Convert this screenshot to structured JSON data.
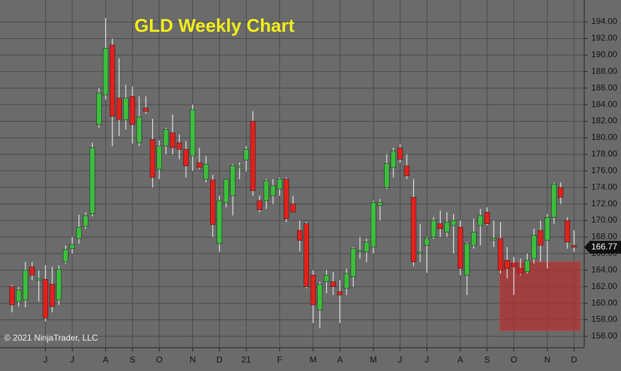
{
  "chart_data": {
    "type": "candlestick",
    "title": "GLD Weekly Chart",
    "copyright": "© 2021 NinjaTrader, LLC",
    "categories": [
      null,
      null,
      null,
      null,
      null,
      "J",
      null,
      null,
      null,
      "J",
      null,
      null,
      null,
      null,
      "A",
      null,
      null,
      null,
      "S",
      null,
      null,
      null,
      "O",
      null,
      null,
      null,
      null,
      "N",
      null,
      null,
      null,
      "D",
      null,
      null,
      null,
      "21",
      null,
      null,
      null,
      null,
      "F",
      null,
      null,
      null,
      null,
      "M",
      null,
      null,
      null,
      "A",
      null,
      null,
      null,
      null,
      "M",
      null,
      null,
      null,
      "J",
      null,
      null,
      null,
      "J",
      null,
      null,
      null,
      null,
      "A",
      null,
      null,
      null,
      "S",
      null,
      null,
      null,
      "O",
      null,
      null,
      null,
      null,
      "N",
      null,
      null,
      null,
      "D"
    ],
    "open": [
      162.0,
      160.2,
      160.4,
      164.4,
      162.8,
      162.9,
      162.3,
      160.4,
      165.0,
      166.6,
      167.8,
      169.3,
      170.8,
      181.6,
      185.2,
      191.2,
      184.8,
      182.2,
      185.0,
      179.4,
      183.6,
      179.8,
      176.2,
      179.0,
      180.6,
      179.4,
      178.6,
      177.8,
      177.0,
      175.0,
      174.9,
      167.2,
      172.2,
      173.0,
      176.4,
      177.3,
      182.0,
      172.4,
      172.4,
      173.0,
      173.8,
      175.0,
      172.0,
      168.8,
      169.6,
      163.4,
      159.2,
      162.6,
      162.6,
      161.4,
      161.8,
      163.2,
      166.2,
      166.2,
      166.8,
      171.8,
      174.0,
      176.4,
      178.8,
      176.6,
      172.8,
      166.0,
      167.0,
      168.0,
      169.6,
      168.6,
      169.4,
      169.2,
      163.4,
      167.0,
      169.4,
      171.0,
      167.6,
      167.8,
      165.2,
      164.8,
      164.2,
      163.8,
      165.4,
      168.8,
      167.6,
      170.4,
      174.0,
      170.0,
      167.0
    ],
    "high": [
      162.2,
      162.0,
      165.0,
      165.0,
      164.0,
      164.6,
      164.4,
      164.6,
      167.0,
      168.0,
      170.7,
      171.0,
      179.4,
      186.0,
      194.5,
      192.0,
      189.6,
      186.4,
      186.2,
      185.0,
      185.0,
      182.3,
      179.7,
      181.2,
      182.8,
      180.4,
      179.6,
      184.0,
      178.8,
      177.8,
      175.5,
      173.0,
      175.0,
      176.8,
      177.0,
      179.0,
      183.2,
      173.0,
      175.0,
      175.0,
      175.2,
      175.2,
      173.0,
      170.0,
      169.8,
      164.0,
      162.6,
      164.0,
      163.8,
      162.8,
      164.2,
      166.8,
      168.0,
      167.8,
      172.4,
      172.6,
      178.0,
      178.8,
      179.2,
      178.0,
      175.0,
      169.6,
      168.0,
      170.4,
      171.2,
      171.0,
      170.8,
      170.0,
      167.4,
      170.2,
      171.4,
      171.6,
      170.0,
      169.8,
      166.8,
      165.6,
      165.4,
      166.0,
      169.0,
      170.0,
      170.8,
      174.6,
      174.6,
      170.4,
      168.8
    ],
    "low": [
      158.9,
      159.6,
      159.5,
      162.8,
      160.2,
      157.8,
      158.9,
      159.8,
      164.8,
      166.0,
      167.2,
      169.0,
      170.5,
      181.2,
      184.6,
      179.0,
      180.2,
      181.0,
      179.3,
      179.0,
      182.9,
      174.0,
      175.0,
      178.0,
      178.0,
      177.4,
      175.2,
      176.0,
      176.2,
      174.6,
      168.0,
      166.2,
      171.6,
      170.6,
      175.0,
      175.9,
      173.0,
      171.0,
      171.4,
      172.0,
      173.0,
      169.8,
      171.0,
      166.3,
      161.8,
      157.6,
      157.0,
      161.2,
      161.0,
      157.6,
      161.0,
      162.0,
      165.4,
      165.0,
      166.0,
      170.0,
      173.8,
      175.2,
      177.0,
      175.0,
      164.5,
      165.0,
      163.7,
      167.8,
      168.0,
      168.0,
      166.0,
      163.4,
      161.0,
      166.6,
      167.0,
      169.4,
      166.8,
      163.6,
      163.0,
      161.0,
      163.4,
      163.6,
      164.8,
      165.0,
      164.2,
      169.6,
      172.0,
      166.6,
      166.2
    ],
    "close": [
      159.8,
      161.6,
      164.0,
      163.4,
      163.0,
      158.2,
      159.6,
      164.1,
      166.5,
      167.1,
      169.2,
      170.6,
      178.8,
      185.4,
      190.8,
      182.6,
      182.2,
      184.8,
      181.6,
      182.5,
      183.2,
      175.2,
      179.0,
      181.0,
      178.8,
      178.6,
      176.6,
      183.4,
      176.4,
      176.8,
      169.5,
      172.4,
      175.0,
      176.6,
      176.6,
      178.6,
      173.6,
      171.3,
      174.8,
      174.2,
      175.0,
      170.2,
      171.0,
      167.6,
      162.0,
      159.8,
      162.3,
      163.4,
      162.0,
      161.0,
      163.6,
      166.6,
      166.4,
      167.4,
      172.2,
      172.2,
      176.9,
      178.4,
      177.4,
      175.4,
      165.0,
      166.2,
      167.8,
      170.0,
      169.0,
      169.8,
      170.0,
      164.2,
      167.2,
      168.6,
      170.6,
      169.6,
      167.8,
      164.0,
      164.2,
      164.4,
      163.6,
      165.2,
      168.2,
      167.0,
      170.4,
      174.4,
      172.8,
      167.4,
      166.77
    ],
    "up_color": "#3cbf3c",
    "down_color": "#e3201b",
    "wick_color": "#e6e6e6",
    "last_price": 166.77,
    "highlight_zone": {
      "x": [
        72.9,
        84.9
      ],
      "y": [
        156.7,
        165.0
      ],
      "color": "#b03030"
    },
    "ylim": [
      154.63,
      196.65
    ],
    "yticks": [
      {
        "value": 156,
        "label": "156.00"
      },
      {
        "value": 158,
        "label": "158.00"
      },
      {
        "value": 160,
        "label": "160.00"
      },
      {
        "value": 162,
        "label": "162.00"
      },
      {
        "value": 164,
        "label": "164.00"
      },
      {
        "value": 166,
        "label": "166.00"
      },
      {
        "value": 168,
        "label": "168.00"
      },
      {
        "value": 170,
        "label": "170.00"
      },
      {
        "value": 172,
        "label": "172.00"
      },
      {
        "value": 174,
        "label": "174.00"
      },
      {
        "value": 176,
        "label": "176.00"
      },
      {
        "value": 178,
        "label": "178.00"
      },
      {
        "value": 180,
        "label": "180.00"
      },
      {
        "value": 182,
        "label": "182.00"
      },
      {
        "value": 184,
        "label": "184.00"
      },
      {
        "value": 186,
        "label": "186.00"
      },
      {
        "value": 188,
        "label": "188.00"
      },
      {
        "value": 190,
        "label": "190.00"
      },
      {
        "value": 192,
        "label": "192.00"
      },
      {
        "value": 194,
        "label": "194.00"
      }
    ],
    "grid": true
  }
}
